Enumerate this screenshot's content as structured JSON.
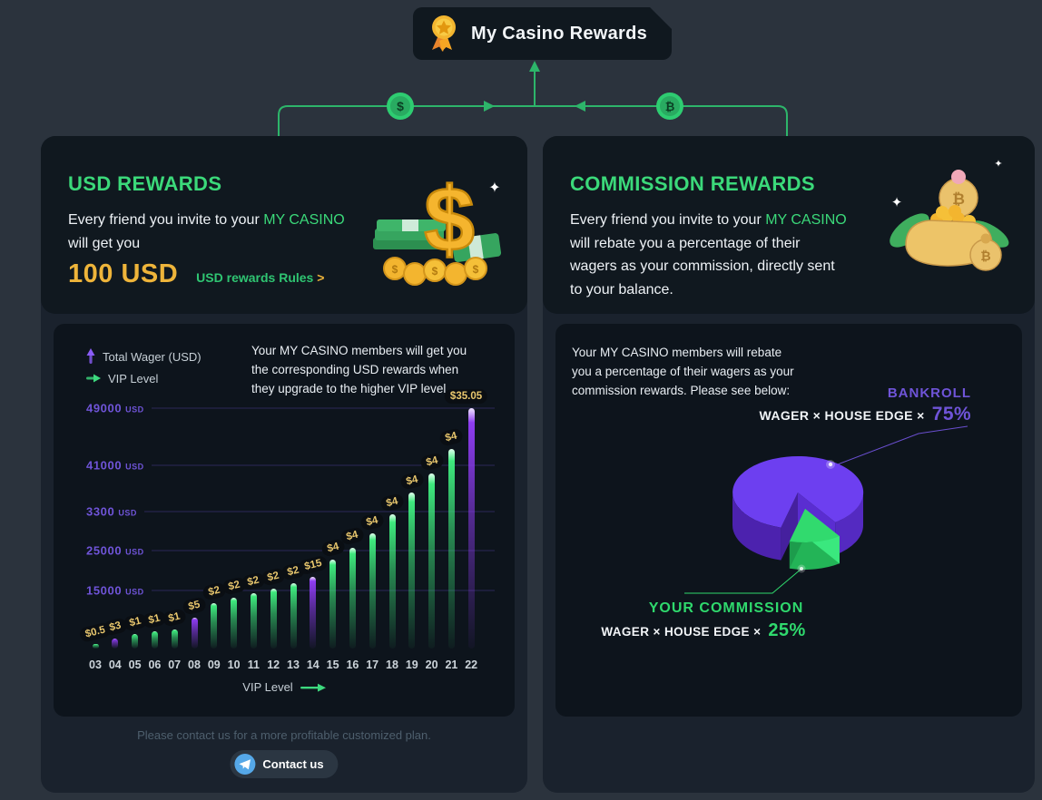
{
  "header": {
    "title": "My Casino Rewards"
  },
  "connector": {
    "dollar_symbol": "$",
    "bitcoin_symbol": "₿"
  },
  "usd_panel": {
    "title": "USD REWARDS",
    "desc_prefix": "Every friend you invite to your ",
    "brand": "MY CASINO",
    "desc_suffix": "\nwill get you",
    "amount": "100 USD",
    "rules_label": "USD rewards Rules",
    "rules_arrow": ">",
    "contact_note": "Please contact us for a more profitable customized plan.",
    "contact_button": "Contact us"
  },
  "commission_panel": {
    "title": "COMMISSION REWARDS",
    "desc_prefix": "Every friend you invite to your ",
    "brand": "MY CASINO",
    "desc_suffix": "\nwill rebate you a percentage of their\nwagers as your commission, directly sent\nto your balance."
  },
  "chart_data": [
    {
      "type": "bar",
      "title": "USD rewards by VIP level",
      "legend": [
        {
          "label": "Total  Wager (USD)",
          "color": "#8a5cf6"
        },
        {
          "label": "VIP Level",
          "color": "#3dd97e"
        }
      ],
      "description": "Your MY CASINO members will get you\nthe corresponding USD rewards when\nthey upgrade to the higher VIP level.",
      "xlabel": "VIP Level",
      "y_axis_labels": [
        {
          "value": "49000",
          "suffix": "USD"
        },
        {
          "value": "41000",
          "suffix": "USD"
        },
        {
          "value": "3300",
          "suffix": "USD"
        },
        {
          "value": "25000",
          "suffix": "USD"
        },
        {
          "value": "15000",
          "suffix": "USD"
        }
      ],
      "categories": [
        "03",
        "04",
        "05",
        "06",
        "07",
        "08",
        "09",
        "10",
        "11",
        "12",
        "13",
        "14",
        "15",
        "16",
        "17",
        "18",
        "19",
        "20",
        "21",
        "22"
      ],
      "bars": [
        {
          "level": "03",
          "reward": "$0.5",
          "height_pct": 2,
          "color": "green"
        },
        {
          "level": "04",
          "reward": "$3",
          "height_pct": 4,
          "color": "purple"
        },
        {
          "level": "05",
          "reward": "$1",
          "height_pct": 6,
          "color": "green"
        },
        {
          "level": "06",
          "reward": "$1",
          "height_pct": 7,
          "color": "green"
        },
        {
          "level": "07",
          "reward": "$1",
          "height_pct": 8,
          "color": "green"
        },
        {
          "level": "08",
          "reward": "$5",
          "height_pct": 13,
          "color": "purple"
        },
        {
          "level": "09",
          "reward": "$2",
          "height_pct": 19,
          "color": "green"
        },
        {
          "level": "10",
          "reward": "$2",
          "height_pct": 21,
          "color": "green"
        },
        {
          "level": "11",
          "reward": "$2",
          "height_pct": 23,
          "color": "green"
        },
        {
          "level": "12",
          "reward": "$2",
          "height_pct": 25,
          "color": "green"
        },
        {
          "level": "13",
          "reward": "$2",
          "height_pct": 27,
          "color": "green"
        },
        {
          "level": "14",
          "reward": "$15",
          "height_pct": 30,
          "color": "purple"
        },
        {
          "level": "15",
          "reward": "$4",
          "height_pct": 37,
          "color": "green"
        },
        {
          "level": "16",
          "reward": "$4",
          "height_pct": 42,
          "color": "green"
        },
        {
          "level": "17",
          "reward": "$4",
          "height_pct": 48,
          "color": "green"
        },
        {
          "level": "18",
          "reward": "$4",
          "height_pct": 56,
          "color": "green"
        },
        {
          "level": "19",
          "reward": "$4",
          "height_pct": 65,
          "color": "green"
        },
        {
          "level": "20",
          "reward": "$4",
          "height_pct": 73,
          "color": "green"
        },
        {
          "level": "21",
          "reward": "$4",
          "height_pct": 83,
          "color": "green"
        },
        {
          "level": "22",
          "reward": "$35.05",
          "height_pct": 100,
          "color": "purple"
        }
      ],
      "bar_colors": {
        "green": "#3ee87d",
        "purple": "#8d3cf0"
      }
    },
    {
      "type": "pie",
      "description": "Your MY CASINO members will rebate\nyou a percentage of their wagers as your\ncommission rewards. Please see below:",
      "slices": [
        {
          "label": "BANKROLL",
          "formula": "WAGER × HOUSE EDGE ×",
          "value": "75%",
          "pct": 75,
          "color": "#6d3ff0"
        },
        {
          "label": "YOUR COMMISSION",
          "formula": "WAGER × HOUSE EDGE ×",
          "value": "25%",
          "pct": 25,
          "color": "#2fd96d"
        }
      ]
    }
  ]
}
